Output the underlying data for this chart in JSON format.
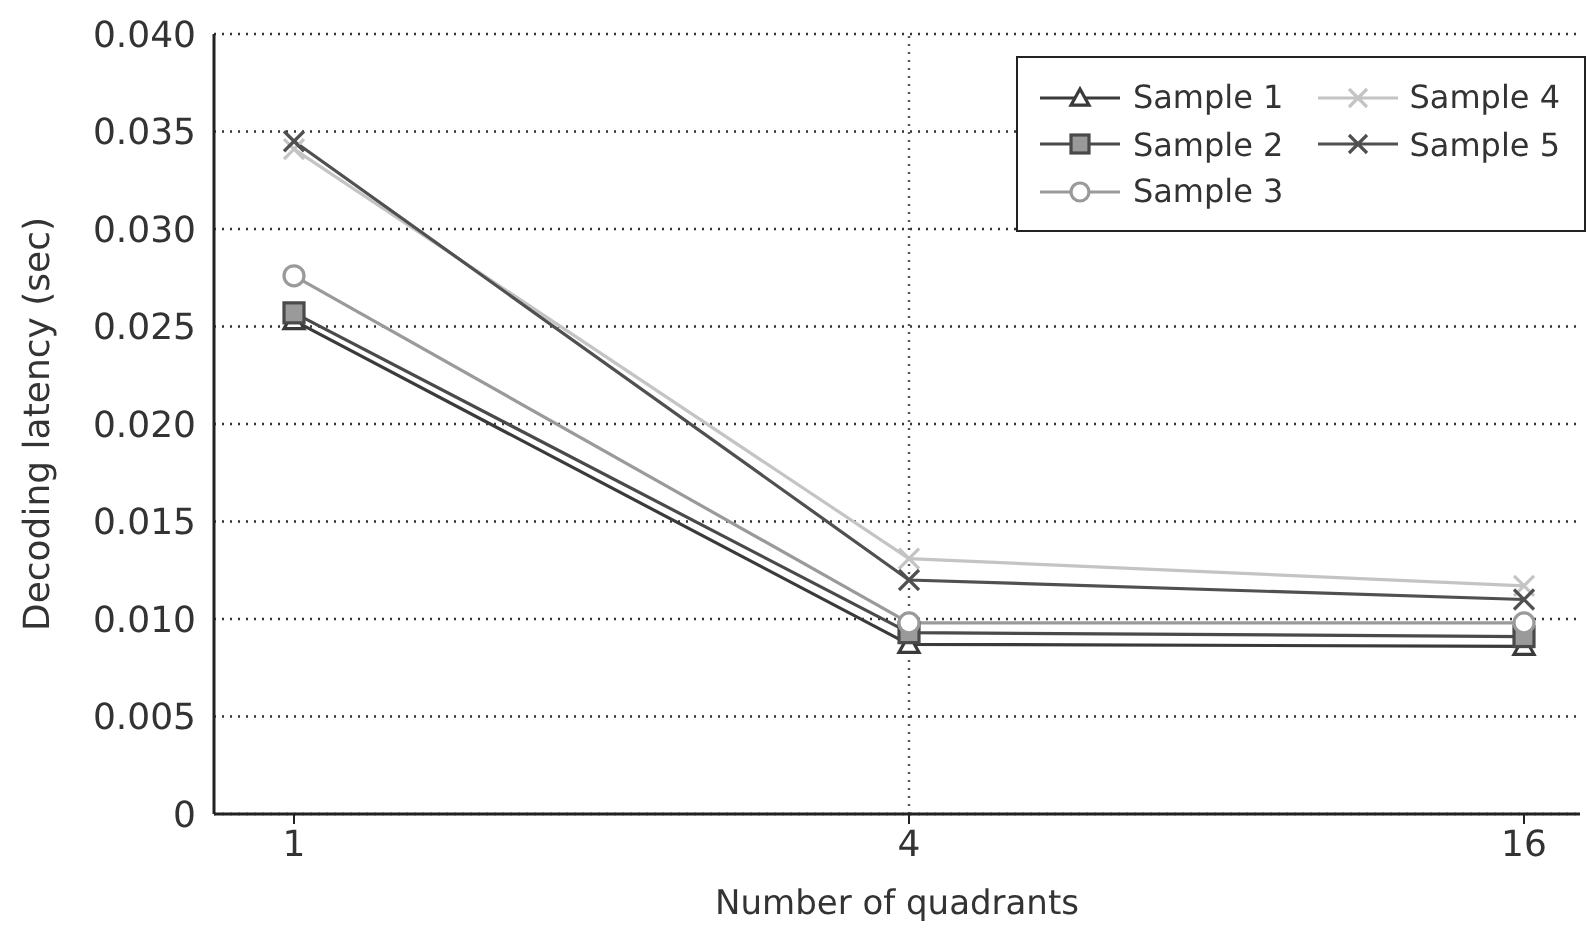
{
  "chart_data": {
    "type": "line",
    "xlabel": "Number of quadrants",
    "ylabel": "Decoding latency (sec)",
    "categories": [
      "1",
      "4",
      "16"
    ],
    "series": [
      {
        "name": "Sample 1",
        "color": "#3a3a3a",
        "marker": "triangle",
        "values": [
          0.0253,
          0.0087,
          0.0086
        ]
      },
      {
        "name": "Sample 2",
        "color": "#4a4a4a",
        "marker": "square",
        "values": [
          0.0257,
          0.0093,
          0.0091
        ]
      },
      {
        "name": "Sample 3",
        "color": "#9a9a9a",
        "marker": "circle",
        "values": [
          0.0276,
          0.0098,
          0.0098
        ]
      },
      {
        "name": "Sample 4",
        "color": "#c4c4c4",
        "marker": "cross",
        "values": [
          0.0341,
          0.0131,
          0.0117
        ]
      },
      {
        "name": "Sample 5",
        "color": "#505050",
        "marker": "cross",
        "values": [
          0.0345,
          0.012,
          0.011
        ]
      }
    ],
    "ylim": [
      0,
      0.04
    ],
    "yticks": [
      0,
      0.005,
      {
        "value": 0.01,
        "label": "0.010"
      },
      0.015,
      {
        "value": 0.02,
        "label": "0.020"
      },
      0.025,
      {
        "value": 0.03,
        "label": "0.030"
      },
      0.035,
      {
        "value": 0.04,
        "label": "0.040"
      }
    ],
    "grid": "y",
    "ref_lines": [
      {
        "axis": "x",
        "value": "4",
        "color": "#555555",
        "line_style": "dotted"
      }
    ],
    "legend": "top right",
    "line_style": "solid"
  }
}
